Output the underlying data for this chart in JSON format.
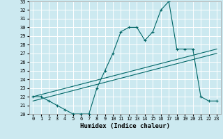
{
  "title": "",
  "xlabel": "Humidex (Indice chaleur)",
  "bg_color": "#cce9f0",
  "grid_color": "#ffffff",
  "line_color": "#006666",
  "xmin": -0.5,
  "xmax": 23.5,
  "ymin": 20,
  "ymax": 33,
  "curve_x": [
    0,
    1,
    2,
    3,
    4,
    5,
    6,
    7,
    8,
    9,
    10,
    11,
    12,
    13,
    14,
    15,
    16,
    17,
    18,
    19,
    20,
    21,
    22,
    23
  ],
  "curve_y": [
    22.0,
    22.0,
    21.5,
    21.0,
    20.5,
    20.0,
    20.0,
    20.0,
    23.0,
    25.0,
    27.0,
    29.5,
    30.0,
    30.0,
    28.5,
    29.5,
    32.0,
    33.0,
    27.5,
    27.5,
    27.5,
    22.0,
    21.5,
    21.5
  ],
  "line1_x": [
    0,
    23
  ],
  "line1_y": [
    22.0,
    27.5
  ],
  "line2_x": [
    0,
    23
  ],
  "line2_y": [
    21.5,
    27.0
  ],
  "yticks": [
    20,
    21,
    22,
    23,
    24,
    25,
    26,
    27,
    28,
    29,
    30,
    31,
    32,
    33
  ],
  "xticks": [
    0,
    1,
    2,
    3,
    4,
    5,
    6,
    7,
    8,
    9,
    10,
    11,
    12,
    13,
    14,
    15,
    16,
    17,
    18,
    19,
    20,
    21,
    22,
    23
  ],
  "tick_fontsize": 5.0,
  "xlabel_fontsize": 6.5,
  "marker_size": 3.0,
  "linewidth": 0.8
}
